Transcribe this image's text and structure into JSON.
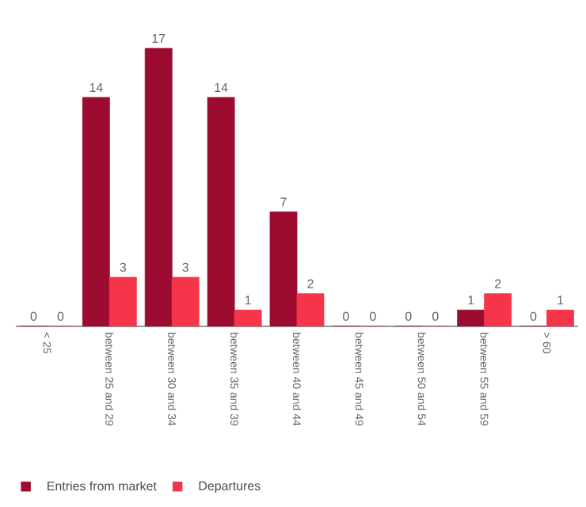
{
  "chart_data": {
    "type": "bar",
    "categories": [
      "< 25",
      "between 25 and 29",
      "between 30 and 34",
      "between 35 and 39",
      "between 40 and 44",
      "between 45 and 49",
      "between 50 and 54",
      "between 55 and 59",
      "> 60"
    ],
    "series": [
      {
        "name": "Entries from market",
        "color": "#9c0b30",
        "values": [
          0,
          14,
          17,
          14,
          7,
          0,
          0,
          1,
          0
        ]
      },
      {
        "name": "Departures",
        "color": "#f5364a",
        "values": [
          0,
          3,
          3,
          1,
          2,
          0,
          0,
          2,
          1
        ]
      }
    ],
    "data_labels": true,
    "legend": "bottom left"
  }
}
